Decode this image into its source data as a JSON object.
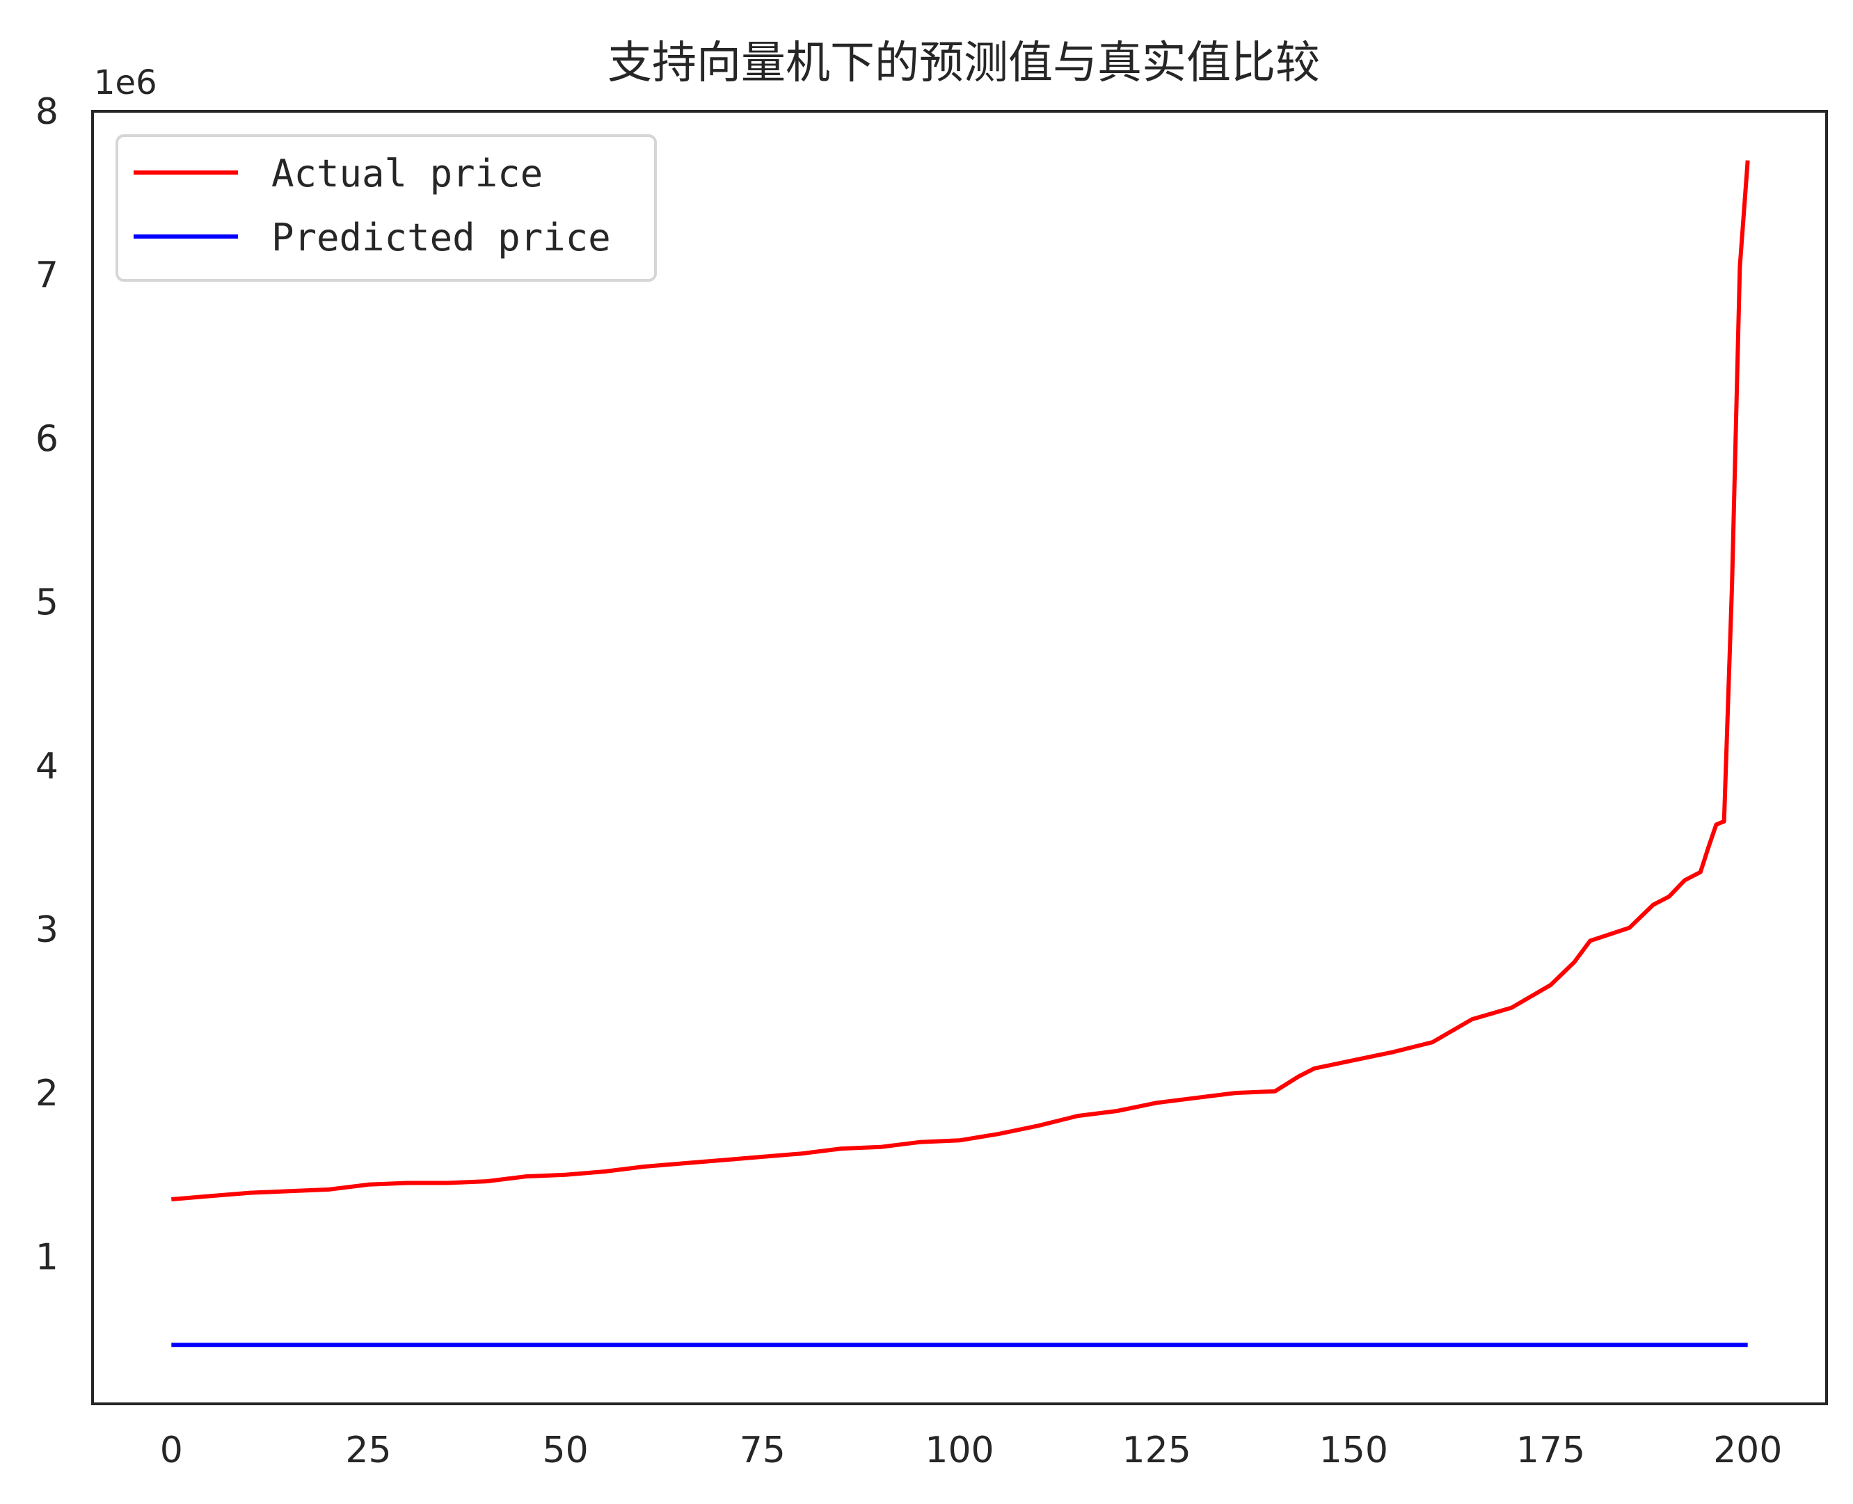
{
  "chart_data": {
    "type": "line",
    "title": "支持向量机下的预测值与真实值比较",
    "xlabel": "",
    "ylabel": "",
    "xlim": [
      -10,
      210
    ],
    "ylim": [
      100000,
      8000000
    ],
    "y_offset_label": "1e6",
    "x_ticks": [
      0,
      25,
      50,
      75,
      100,
      125,
      150,
      175,
      200
    ],
    "x_tick_labels": [
      "0",
      "25",
      "50",
      "75",
      "100",
      "125",
      "150",
      "175",
      "200"
    ],
    "y_ticks": [
      1000000,
      2000000,
      3000000,
      4000000,
      5000000,
      6000000,
      7000000,
      8000000
    ],
    "y_tick_labels": [
      "1",
      "2",
      "3",
      "4",
      "5",
      "6",
      "7",
      "8"
    ],
    "grid": false,
    "legend": "upper-left",
    "series": [
      {
        "name": "Actual price",
        "color": "#ff0000",
        "x": [
          0,
          5,
          10,
          15,
          20,
          25,
          30,
          35,
          40,
          45,
          50,
          55,
          60,
          65,
          70,
          75,
          80,
          85,
          90,
          95,
          100,
          105,
          110,
          115,
          120,
          125,
          130,
          135,
          140,
          143,
          145,
          150,
          155,
          160,
          165,
          170,
          175,
          178,
          180,
          185,
          188,
          190,
          192,
          194,
          195,
          196,
          197,
          198,
          199,
          200
        ],
        "values": [
          1350000,
          1370000,
          1390000,
          1400000,
          1410000,
          1440000,
          1450000,
          1450000,
          1460000,
          1490000,
          1500000,
          1520000,
          1550000,
          1570000,
          1590000,
          1610000,
          1630000,
          1660000,
          1670000,
          1700000,
          1710000,
          1750000,
          1800000,
          1860000,
          1890000,
          1940000,
          1970000,
          2000000,
          2010000,
          2100000,
          2150000,
          2200000,
          2250000,
          2310000,
          2450000,
          2520000,
          2660000,
          2800000,
          2930000,
          3010000,
          3150000,
          3200000,
          3300000,
          3350000,
          3500000,
          3640000,
          3660000,
          5100000,
          7050000,
          7700000
        ]
      },
      {
        "name": "Predicted price",
        "color": "#0000ff",
        "x": [
          0,
          200
        ],
        "values": [
          460000,
          460000
        ]
      }
    ]
  }
}
